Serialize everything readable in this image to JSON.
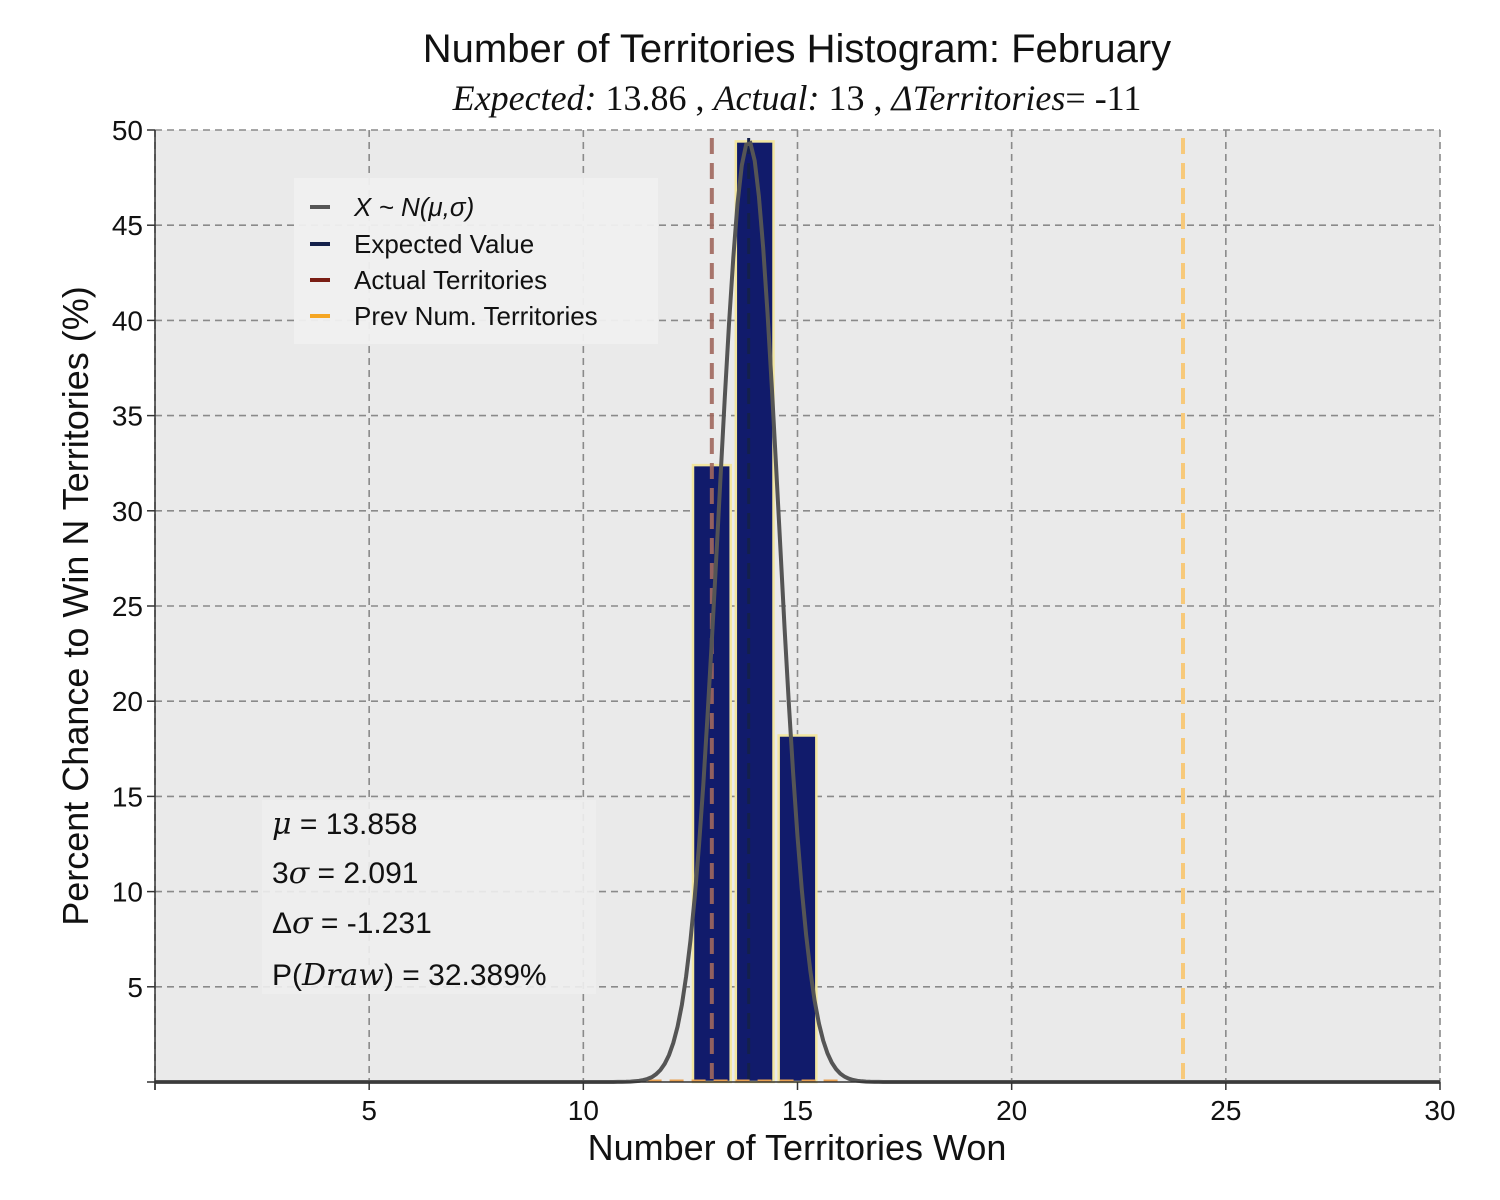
{
  "chart_data": {
    "type": "bar",
    "title": "Number of Territories Histogram: February",
    "subtitle": {
      "expected_label": "Expected:",
      "expected_value": "13.86",
      "sep1": ",",
      "actual_label": "Actual:",
      "actual_value": "13",
      "sep2": ",",
      "delta_label": "ΔTerritories",
      "delta_eq": "=",
      "delta_value": "-11"
    },
    "xlabel": "Number of Territories Won",
    "ylabel": "Percent Chance to Win N Territories (%)",
    "xlim": [
      0,
      30
    ],
    "ylim": [
      0,
      50
    ],
    "xticks": [
      5,
      10,
      15,
      20,
      25,
      30
    ],
    "yticks": [
      5,
      10,
      15,
      20,
      25,
      30,
      35,
      40,
      45,
      50
    ],
    "grid": true,
    "bars": [
      {
        "x": 13,
        "value": 32.4
      },
      {
        "x": 14,
        "value": 49.4
      },
      {
        "x": 15,
        "value": 18.2
      }
    ],
    "normal_curve": {
      "mu": 13.858,
      "sigma": 0.697
    },
    "vlines": {
      "expected": 13.86,
      "actual": 13,
      "previous": 24
    },
    "legend": {
      "position": "upper-left",
      "items": [
        {
          "pre": "X ~ N(",
          "mu": "μ",
          "comma": ",",
          "sigma": "σ",
          "post": ")",
          "color": "#555555"
        },
        {
          "label": "Expected Value",
          "color": "#14204a"
        },
        {
          "label": "Actual Territories",
          "color": "#7a1e14"
        },
        {
          "label": "Prev Num. Territories",
          "color": "#f5a623"
        }
      ]
    },
    "stats": [
      {
        "sym": "μ",
        "text": " = 13.858"
      },
      {
        "pre": "3",
        "sym": "σ",
        "text": " = 2.091"
      },
      {
        "pre": "Δ",
        "sym": "σ",
        "text": " = -1.231"
      },
      {
        "pre": "P(",
        "sym": "Draw",
        "text": ") = 32.389%"
      }
    ],
    "colors": {
      "bar_fill": "#111b6b",
      "bar_edge": "#f2e6a0",
      "background": "#eaeaea",
      "grid": "#8a8a8a",
      "curve": "#555555",
      "expected_line": "#14204a",
      "actual_line": "#a0685e",
      "previous_line": "#f7c97a"
    }
  }
}
